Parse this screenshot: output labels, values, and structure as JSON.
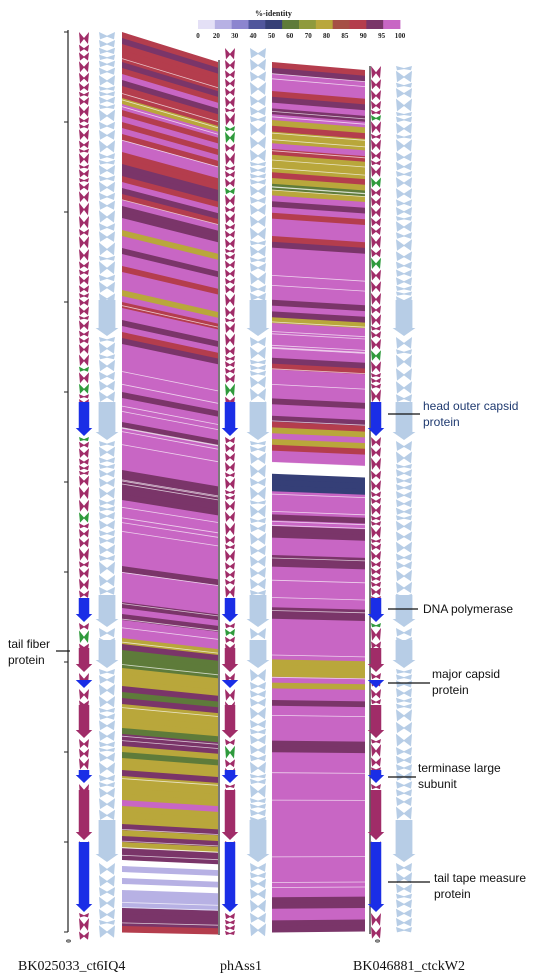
{
  "legend": {
    "title": "%-identity",
    "ticks": [
      "0",
      "20",
      "30",
      "40",
      "50",
      "60",
      "70",
      "80",
      "85",
      "90",
      "95",
      "100"
    ],
    "colors": [
      "#e4e0f6",
      "#b7b1e4",
      "#8c85cf",
      "#50569c",
      "#353f77",
      "#5e7b3a",
      "#8f9a3c",
      "#b9a73b",
      "#a64f45",
      "#b43d4d",
      "#7a3569",
      "#c866c4"
    ]
  },
  "genomes": [
    {
      "name": "BK025033_ct6IQ4",
      "axis_zero": "0"
    },
    {
      "name": "phAss1",
      "axis_zero": ""
    },
    {
      "name": "BK046881_ctckW2",
      "axis_zero": "0"
    }
  ],
  "annotations": [
    {
      "text": "head outer capsid",
      "text2": "protein",
      "color": "#1f3a70"
    },
    {
      "text": "DNA polymerase",
      "text2": "",
      "color": "#111111"
    },
    {
      "text": "major capsid",
      "text2": "protein",
      "color": "#111111"
    },
    {
      "text": "terminase large",
      "text2": "subunit",
      "color": "#111111"
    },
    {
      "text": "tail tape measure",
      "text2": "protein",
      "color": "#111111"
    },
    {
      "text": "tail fiber",
      "text2": "protein",
      "color": "#111111"
    }
  ],
  "colors": {
    "gene_pink": "#a02c68",
    "gene_blue": "#1a2ee6",
    "gene_green": "#2f9a3c",
    "gene_light": "#b7cde6",
    "axis": "#222222"
  }
}
